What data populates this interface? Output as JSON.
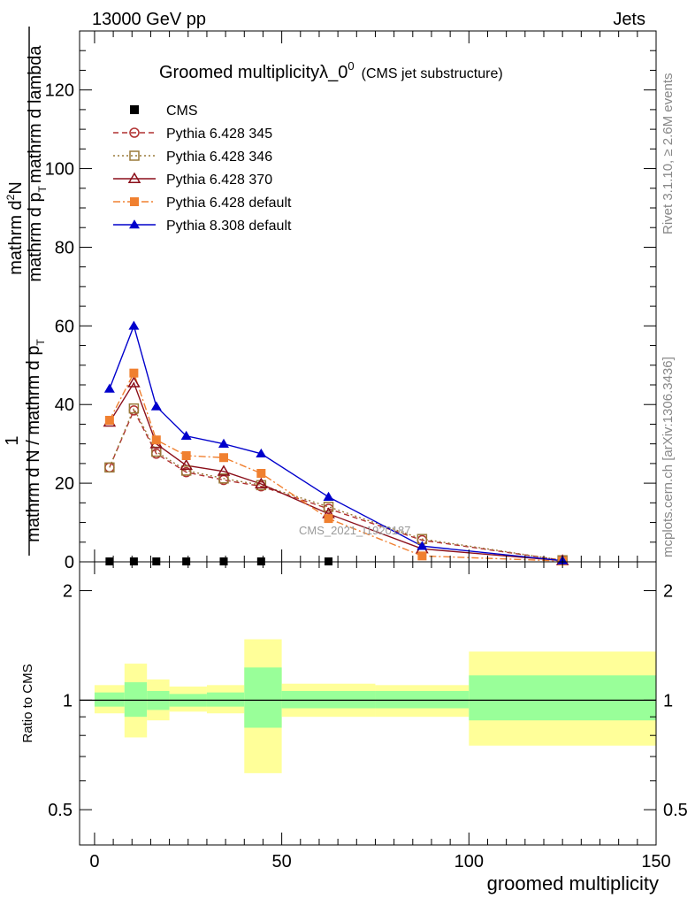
{
  "header": {
    "energy_label": "13000 GeV pp",
    "process_label": "Jets"
  },
  "side_labels": {
    "rivet": "Rivet 3.1.10, ≥ 2.6M events",
    "mcplots": "mcplots.cern.ch [arXiv:1306.3436]"
  },
  "watermark": "CMS_2021_I1920187",
  "chart_data": [
    {
      "type": "line",
      "title_main": "Groomed multiplicityλ_0",
      "title_sup": "0",
      "title_sub": "(CMS jet substructure)",
      "ylabel_prefix": "1",
      "ylabel_denominator": "mathrm d N / mathrm d p",
      "ylabel_denominator_sub": "T",
      "ylabel_numerator": "mathrm d",
      "ylabel_numerator_sup": "2",
      "ylabel_numerator_tail": "N",
      "ylabel_bottom": "mathrm d p",
      "ylabel_bottom_sub": "T",
      "ylabel_bottom_tail": "mathrm d lambda",
      "ylim": [
        0,
        135
      ],
      "yticks": [
        0,
        20,
        40,
        60,
        80,
        100,
        120
      ],
      "xlim": [
        -4,
        150
      ],
      "legend_position": "top-left",
      "series": [
        {
          "name": "CMS",
          "color": "#000000",
          "marker": "square-filled",
          "line": "none",
          "x": [
            4,
            10.5,
            16.5,
            24.5,
            34.5,
            44.5,
            62.5
          ],
          "y": [
            0.1,
            0.1,
            0.1,
            0.1,
            0.1,
            0.1,
            0.1
          ]
        },
        {
          "name": "Pythia 6.428 345",
          "color": "#b03030",
          "marker": "circle-open",
          "line": "dashed",
          "x": [
            4,
            10.5,
            16.5,
            24.5,
            34.5,
            44.5,
            62.5,
            87.5,
            125
          ],
          "y": [
            24,
            38.5,
            27.5,
            22.8,
            20.8,
            19.2,
            13.5,
            5.5,
            0.4
          ]
        },
        {
          "name": "Pythia 6.428 346",
          "color": "#9a7a3a",
          "marker": "square-open",
          "line": "dotted",
          "x": [
            4,
            10.5,
            16.5,
            24.5,
            34.5,
            44.5,
            62.5,
            87.5,
            125
          ],
          "y": [
            24,
            39,
            28,
            23.2,
            21.2,
            19.5,
            14,
            5.8,
            0.4
          ]
        },
        {
          "name": "Pythia 6.428 370",
          "color": "#8b0f1a",
          "marker": "triangle-open",
          "line": "solid",
          "x": [
            4,
            10.5,
            16.5,
            24.5,
            34.5,
            44.5,
            62.5,
            87.5,
            125
          ],
          "y": [
            35.5,
            45.5,
            30,
            24.5,
            23,
            19.8,
            12.2,
            3.3,
            0.3
          ]
        },
        {
          "name": "Pythia 6.428 default",
          "color": "#f08030",
          "marker": "square-filled",
          "line": "dashdot",
          "x": [
            4,
            10.5,
            16.5,
            24.5,
            34.5,
            44.5,
            62.5,
            87.5,
            125
          ],
          "y": [
            36,
            48,
            31,
            27,
            26.5,
            22.5,
            11,
            1.5,
            0.2
          ]
        },
        {
          "name": "Pythia 8.308 default",
          "color": "#0000cc",
          "marker": "triangle-filled",
          "line": "solid",
          "x": [
            4,
            10.5,
            16.5,
            24.5,
            34.5,
            44.5,
            62.5,
            87.5,
            125
          ],
          "y": [
            44,
            60,
            39.5,
            32,
            30,
            27.5,
            16.5,
            4,
            0.3
          ]
        }
      ]
    },
    {
      "type": "area",
      "ylabel": "Ratio to CMS",
      "xlabel": "groomed multiplicity",
      "scale": "log",
      "ylim": [
        0.4,
        2.4
      ],
      "yticks": [
        0.5,
        1,
        2
      ],
      "xlim": [
        -4,
        150
      ],
      "xticks": [
        0,
        50,
        100,
        150
      ],
      "reference_line": 1,
      "bins": [
        {
          "x0": 0,
          "x1": 8,
          "inner": [
            0.96,
            1.05
          ],
          "outer": [
            0.92,
            1.1
          ]
        },
        {
          "x0": 8,
          "x1": 14,
          "inner": [
            0.9,
            1.12
          ],
          "outer": [
            0.79,
            1.26
          ]
        },
        {
          "x0": 14,
          "x1": 20,
          "inner": [
            0.94,
            1.06
          ],
          "outer": [
            0.88,
            1.14
          ]
        },
        {
          "x0": 20,
          "x1": 30,
          "inner": [
            0.96,
            1.04
          ],
          "outer": [
            0.93,
            1.09
          ]
        },
        {
          "x0": 30,
          "x1": 40,
          "inner": [
            0.96,
            1.05
          ],
          "outer": [
            0.92,
            1.1
          ]
        },
        {
          "x0": 40,
          "x1": 50,
          "inner": [
            0.84,
            1.23
          ],
          "outer": [
            0.63,
            1.47
          ]
        },
        {
          "x0": 50,
          "x1": 75,
          "inner": [
            0.95,
            1.06
          ],
          "outer": [
            0.9,
            1.11
          ]
        },
        {
          "x0": 75,
          "x1": 100,
          "inner": [
            0.95,
            1.06
          ],
          "outer": [
            0.9,
            1.1
          ]
        },
        {
          "x0": 100,
          "x1": 150,
          "inner": [
            0.88,
            1.17
          ],
          "outer": [
            0.75,
            1.36
          ]
        }
      ],
      "colors": {
        "inner": "#99ff99",
        "outer": "#ffff99"
      }
    }
  ]
}
